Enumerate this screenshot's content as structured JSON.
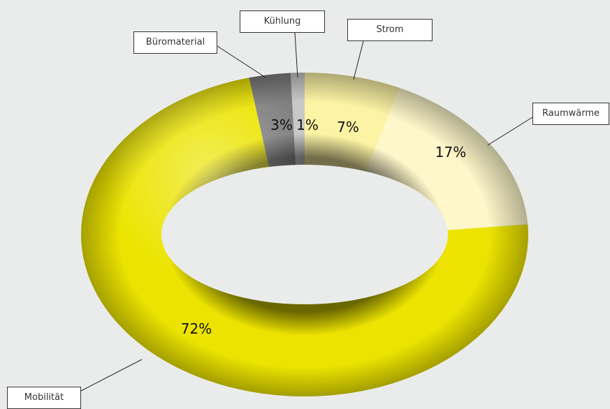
{
  "chart_data": {
    "type": "pie",
    "title": "",
    "categories": [
      "Strom",
      "Raumwärme",
      "Mobilität",
      "Büromaterial",
      "Kühlung"
    ],
    "values": [
      7,
      17,
      72,
      3,
      1
    ],
    "value_labels": [
      "7%",
      "17%",
      "72%",
      "3%",
      "1%"
    ],
    "colors": {
      "Strom": "#fcf3a4",
      "Raumwärme": "#fdf7c9",
      "Mobilität": "#ece400",
      "Büromaterial": "#808080",
      "Kühlung": "#c8c8c8"
    },
    "style": "3d-donut",
    "legend": "callouts"
  }
}
